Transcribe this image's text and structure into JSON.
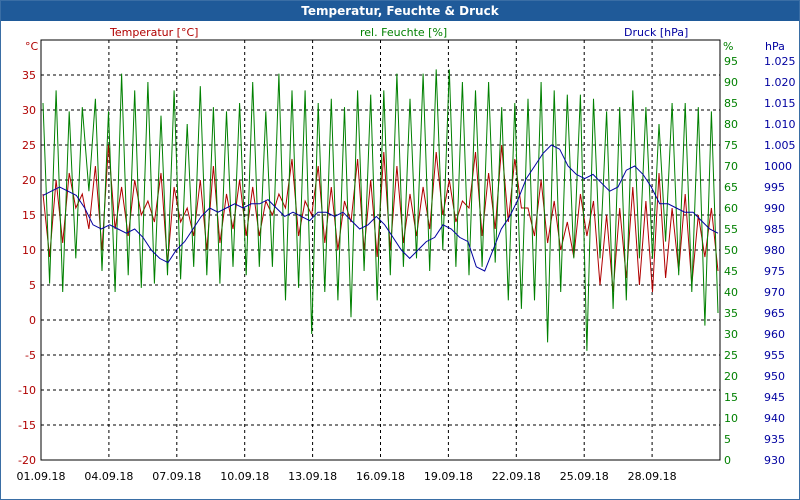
{
  "window": {
    "title": "Temperatur, Feuchte & Druck"
  },
  "axes": {
    "left": {
      "unit": "°C",
      "label": "Temperatur [°C]",
      "color": "#b00000",
      "ticks": [
        "35",
        "30",
        "25",
        "20",
        "15",
        "10",
        "5",
        "0",
        "-5",
        "-10",
        "-15",
        "-20"
      ],
      "range": [
        -20,
        40
      ]
    },
    "mid": {
      "unit": "%",
      "label": "rel. Feuchte [%]",
      "color": "#008000",
      "ticks": [
        "95",
        "90",
        "85",
        "80",
        "75",
        "70",
        "65",
        "60",
        "55",
        "50",
        "45",
        "40",
        "35",
        "30",
        "25",
        "20",
        "15",
        "10",
        "5",
        "0"
      ],
      "range": [
        0,
        100
      ]
    },
    "right": {
      "unit": "hPa",
      "label": "Druck [hPa]",
      "color": "#0000a0",
      "ticks": [
        "1.025",
        "1.020",
        "1.015",
        "1.010",
        "1.005",
        "1000",
        "995",
        "990",
        "985",
        "980",
        "975",
        "970",
        "965",
        "960",
        "955",
        "950",
        "945",
        "940",
        "935",
        "930"
      ],
      "range": [
        930,
        1030
      ]
    },
    "x": {
      "ticks": [
        "01.09.18",
        "04.09.18",
        "07.09.18",
        "10.09.18",
        "13.09.18",
        "16.09.18",
        "19.09.18",
        "22.09.18",
        "25.09.18",
        "28.09.18"
      ]
    }
  },
  "chart_data": {
    "type": "line",
    "title": "Temperatur, Feuchte & Druck",
    "grid": true,
    "x_start": "01.09.18",
    "x_end": "01.10.18",
    "series": [
      {
        "name": "Temperatur [°C]",
        "axis": "left",
        "color": "#b00000",
        "values": [
          18,
          9,
          20,
          11,
          21,
          16,
          18,
          13,
          22,
          10,
          25,
          13,
          19,
          12,
          20,
          15,
          17,
          14,
          21,
          8,
          19,
          14,
          16,
          12,
          20,
          10,
          22,
          11,
          18,
          13,
          20,
          12,
          19,
          12,
          17,
          15,
          18,
          16,
          23,
          12,
          17,
          15,
          22,
          11,
          19,
          10,
          17,
          14,
          23,
          10,
          20,
          9,
          24,
          10,
          22,
          11,
          18,
          12,
          19,
          13,
          24,
          15,
          20,
          14,
          17,
          16,
          24,
          12,
          21,
          13,
          25,
          14,
          23,
          16,
          16,
          12,
          20,
          11,
          17,
          10,
          14,
          9,
          18,
          12,
          17,
          5,
          15,
          4,
          16,
          6,
          19,
          5,
          17,
          4,
          21,
          6,
          16,
          7,
          18,
          5,
          15,
          9,
          16,
          7
        ]
      },
      {
        "name": "rel. Feuchte [%]",
        "axis": "mid",
        "color": "#008000",
        "values": [
          85,
          42,
          88,
          40,
          83,
          48,
          84,
          64,
          86,
          45,
          83,
          40,
          92,
          44,
          88,
          41,
          90,
          42,
          82,
          44,
          88,
          43,
          80,
          46,
          89,
          44,
          84,
          42,
          83,
          46,
          85,
          44,
          90,
          46,
          83,
          46,
          92,
          38,
          88,
          41,
          88,
          30,
          85,
          40,
          86,
          38,
          84,
          34,
          88,
          45,
          87,
          38,
          88,
          44,
          92,
          46,
          86,
          48,
          92,
          45,
          93,
          50,
          93,
          46,
          90,
          44,
          88,
          46,
          90,
          47,
          84,
          38,
          85,
          36,
          86,
          38,
          90,
          28,
          88,
          40,
          87,
          48,
          87,
          26,
          86,
          48,
          83,
          36,
          84,
          38,
          88,
          48,
          84,
          48,
          80,
          52,
          85,
          44,
          85,
          40,
          84,
          32,
          83,
          35
        ]
      },
      {
        "name": "Druck [hPa]",
        "axis": "right",
        "color": "#0000a0",
        "values": [
          993,
          994,
          995,
          994,
          993,
          990,
          986,
          985,
          986,
          985,
          984,
          985,
          983,
          980,
          978,
          977,
          980,
          982,
          985,
          988,
          990,
          989,
          990,
          991,
          990,
          991,
          991,
          992,
          990,
          988,
          989,
          988,
          987,
          989,
          989,
          988,
          989,
          987,
          985,
          986,
          988,
          986,
          983,
          980,
          978,
          980,
          982,
          983,
          986,
          985,
          983,
          982,
          976,
          975,
          980,
          985,
          988,
          992,
          997,
          1000,
          1003,
          1005,
          1004,
          1000,
          998,
          997,
          998,
          996,
          994,
          995,
          999,
          1000,
          998,
          995,
          991,
          991,
          990,
          989,
          989,
          987,
          985,
          984
        ]
      }
    ]
  }
}
